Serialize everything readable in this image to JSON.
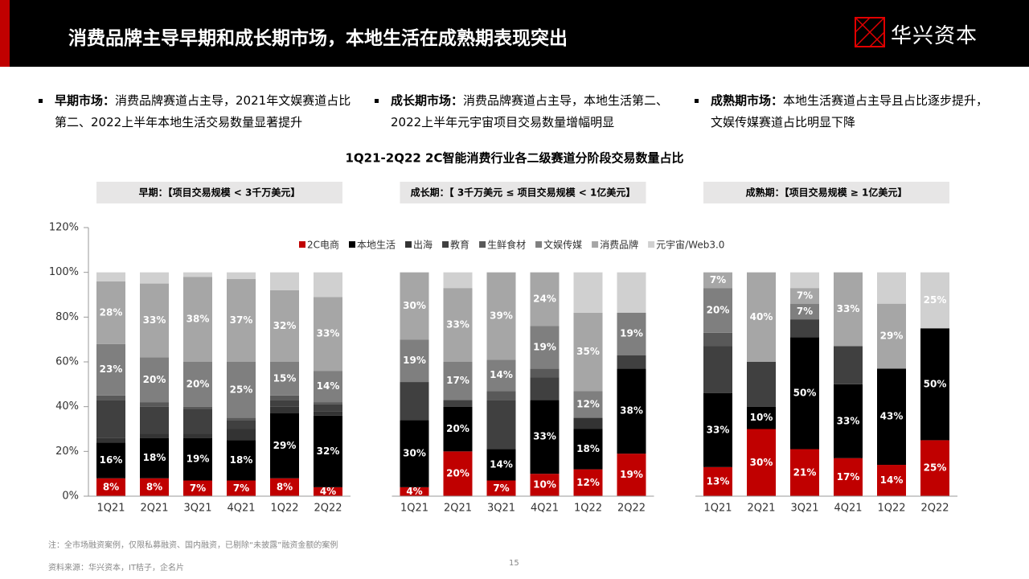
{
  "header": {
    "title": "消费品牌主导早期和成长期市场，本地生活在成熟期表现突出",
    "logo": "华兴资本"
  },
  "bullets": [
    {
      "label": "早期市场：",
      "text": "消费品牌赛道占主导，2021年文娱赛道占比第二、2022上半年本地生活交易数量显著提升"
    },
    {
      "label": "成长期市场：",
      "text": "消费品牌赛道占主导，本地生活第二、2022上半年元宇宙项目交易数量增幅明显"
    },
    {
      "label": "成熟期市场：",
      "text": "本地生活赛道占主导且占比逐步提升，文娱传媒赛道占比明显下降"
    }
  ],
  "chart_data": {
    "type": "bar",
    "stacked": true,
    "title": "1Q21-2Q22 2C智能消费行业各二级赛道分阶段交易数量占比",
    "panels": [
      "早期：【项目交易规模 < 3千万美元】",
      "成长期：【 3千万美元 ≤ 项目交易规模 < 1亿美元】",
      "成熟期：【项目交易规模 ≥ 1亿美元】"
    ],
    "categories": [
      "1Q21",
      "2Q21",
      "3Q21",
      "4Q21",
      "1Q22",
      "2Q22",
      "1Q21",
      "2Q21",
      "3Q21",
      "4Q21",
      "1Q22",
      "2Q22",
      "1Q21",
      "2Q21",
      "3Q21",
      "4Q21",
      "1Q22",
      "2Q22"
    ],
    "ylim": [
      0,
      120
    ],
    "yticks": [
      {
        "value": 0,
        "label": "0%"
      },
      {
        "value": 20,
        "label": "20%"
      },
      {
        "value": 40,
        "label": "40%"
      },
      {
        "value": 60,
        "label": "60%"
      },
      {
        "value": 80,
        "label": "80%"
      },
      {
        "value": 100,
        "label": "100%"
      },
      {
        "value": 120,
        "label": "120%"
      }
    ],
    "series": [
      {
        "name": "2C电商",
        "color": "#c00000",
        "values": [
          8,
          8,
          7,
          7,
          8,
          4,
          4,
          20,
          7,
          10,
          12,
          19,
          13,
          30,
          21,
          17,
          14,
          25
        ],
        "value_labels": [
          "8%",
          "8%",
          "7%",
          "7%",
          "8%",
          "4%",
          "4%",
          "20%",
          "7%",
          "10%",
          "12%",
          "19%",
          "13%",
          "30%",
          "21%",
          "17%",
          "14%",
          "25%"
        ]
      },
      {
        "name": "本地生活",
        "color": "#000000",
        "values": [
          16,
          18,
          19,
          18,
          29,
          32,
          30,
          20,
          14,
          33,
          18,
          38,
          33,
          10,
          50,
          33,
          43,
          50
        ],
        "value_labels": [
          "16%",
          "18%",
          "19%",
          "18%",
          "29%",
          "32%",
          "30%",
          "20%",
          "14%",
          "33%",
          "18%",
          "38%",
          "33%",
          "10%",
          "50%",
          "33%",
          "43%",
          "50%"
        ]
      },
      {
        "name": "出海",
        "color": "#333333",
        "values": [
          2,
          2,
          2,
          5,
          3,
          2,
          0,
          0,
          0,
          0,
          5,
          0,
          0,
          0,
          0,
          0,
          0,
          0
        ],
        "value_labels": [
          null,
          null,
          null,
          null,
          null,
          null,
          null,
          null,
          null,
          null,
          null,
          null,
          null,
          null,
          null,
          null,
          null,
          null
        ]
      },
      {
        "name": "教育",
        "color": "#404040",
        "values": [
          17,
          12,
          11,
          4,
          3,
          3,
          17,
          3,
          22,
          10,
          0,
          6,
          21,
          20,
          8,
          17,
          0,
          0
        ],
        "value_labels": [
          null,
          null,
          null,
          null,
          null,
          null,
          null,
          null,
          null,
          null,
          null,
          null,
          null,
          null,
          null,
          null,
          null,
          null
        ]
      },
      {
        "name": "生鲜食材",
        "color": "#595959",
        "values": [
          2,
          2,
          1,
          1,
          2,
          1,
          0,
          0,
          4,
          4,
          0,
          0,
          6,
          0,
          0,
          0,
          0,
          0
        ],
        "value_labels": [
          null,
          null,
          null,
          null,
          null,
          null,
          null,
          null,
          null,
          null,
          null,
          null,
          null,
          null,
          null,
          null,
          null,
          null
        ]
      },
      {
        "name": "文娱传媒",
        "color": "#7f7f7f",
        "values": [
          23,
          20,
          20,
          25,
          15,
          14,
          19,
          17,
          14,
          19,
          12,
          19,
          20,
          0,
          7,
          0,
          0,
          0
        ],
        "value_labels": [
          "23%",
          "20%",
          "20%",
          "25%",
          "15%",
          "14%",
          "19%",
          "17%",
          "14%",
          "19%",
          "12%",
          "19%",
          "20%",
          null,
          "7%",
          null,
          null,
          null
        ]
      },
      {
        "name": "消费品牌",
        "color": "#a6a6a6",
        "values": [
          28,
          33,
          38,
          37,
          32,
          33,
          30,
          33,
          39,
          24,
          35,
          0,
          7,
          40,
          7,
          33,
          29,
          0
        ],
        "value_labels": [
          "28%",
          "33%",
          "38%",
          "37%",
          "32%",
          "33%",
          "30%",
          "33%",
          "39%",
          "24%",
          "35%",
          null,
          "7%",
          "40%",
          "7%",
          "33%",
          "29%",
          null
        ]
      },
      {
        "name": "元宇宙/Web3.0",
        "color": "#d0d0d0",
        "values": [
          4,
          5,
          2,
          3,
          8,
          11,
          0,
          7,
          0,
          0,
          18,
          18,
          0,
          0,
          7,
          0,
          14,
          25
        ],
        "value_labels": [
          null,
          null,
          null,
          null,
          null,
          null,
          null,
          null,
          null,
          null,
          null,
          null,
          null,
          null,
          null,
          null,
          null,
          "25%"
        ]
      }
    ]
  },
  "notes": [
    "注：全市场融资案例，仅限私募融资、国内融资，已剔除“未披露”融资金额的案例",
    "资料来源：华兴资本，IT桔子，企名片"
  ],
  "page_number": "15"
}
